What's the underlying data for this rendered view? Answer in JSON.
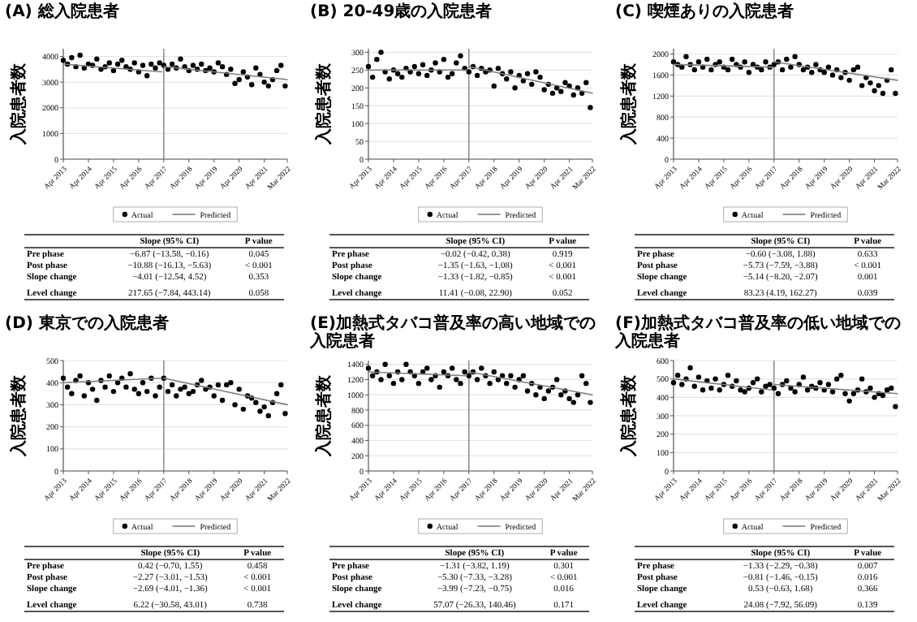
{
  "chart_data": [
    {
      "type": "scatter",
      "title": "(A) 総入院患者",
      "ylabel": "入院患者数",
      "grid": "y",
      "legend": "bottom",
      "x": [
        "2013-04",
        "2013-06",
        "2013-08",
        "2013-10",
        "2013-12",
        "2014-02",
        "2014-04",
        "2014-06",
        "2014-08",
        "2014-10",
        "2014-12",
        "2015-02",
        "2015-04",
        "2015-06",
        "2015-08",
        "2015-10",
        "2015-12",
        "2016-02",
        "2016-04",
        "2016-06",
        "2016-08",
        "2016-10",
        "2016-12",
        "2017-02",
        "2017-04",
        "2017-06",
        "2017-08",
        "2017-10",
        "2017-12",
        "2018-02",
        "2018-04",
        "2018-06",
        "2018-08",
        "2018-10",
        "2018-12",
        "2019-02",
        "2019-04",
        "2019-06",
        "2019-08",
        "2019-10",
        "2019-12",
        "2020-02",
        "2020-04",
        "2020-06",
        "2020-08",
        "2020-10",
        "2020-12",
        "2021-02",
        "2021-04",
        "2021-06",
        "2021-08",
        "2021-10",
        "2021-12",
        "2022-02"
      ],
      "xlim": [
        "2013-04",
        "2022-03"
      ],
      "xticks": [
        {
          "value": "2013-04",
          "label": "Apr 2013"
        },
        {
          "value": "2014-04",
          "label": "Apr 2014"
        },
        {
          "value": "2015-04",
          "label": "Apr 2015"
        },
        {
          "value": "2016-04",
          "label": "Apr 2016"
        },
        {
          "value": "2017-04",
          "label": "Apr 2017"
        },
        {
          "value": "2018-04",
          "label": "Apr 2018"
        },
        {
          "value": "2019-04",
          "label": "Apr 2019"
        },
        {
          "value": "2020-04",
          "label": "Apr 2020"
        },
        {
          "value": "2021-04",
          "label": "Apr 2021"
        },
        {
          "value": "2022-03",
          "label": "Mar 2022"
        }
      ],
      "ylim": [
        0,
        4300
      ],
      "yticks": [
        0,
        1000,
        2000,
        3000,
        4000
      ],
      "ref_lines": [
        {
          "axis": "x",
          "value": "2017-04",
          "color": "#808080"
        }
      ],
      "series": [
        {
          "name": "Actual",
          "type": "scatter",
          "marker": "circle",
          "color": "#000000",
          "values": [
            3850,
            3700,
            3950,
            3600,
            4050,
            3550,
            3700,
            3650,
            3900,
            3500,
            3600,
            3750,
            3450,
            3700,
            3850,
            3600,
            3500,
            3750,
            3400,
            3650,
            3250,
            3700,
            3550,
            3750,
            3650,
            3500,
            3700,
            3550,
            3900,
            3600,
            3450,
            3650,
            3500,
            3700,
            3450,
            3550,
            3400,
            3750,
            3600,
            3300,
            3500,
            2950,
            3100,
            3400,
            3200,
            2900,
            3550,
            3300,
            3000,
            2850,
            3100,
            3450,
            3650,
            2850
          ]
        },
        {
          "name": "Predicted",
          "type": "line",
          "marker": "none",
          "color": "#7f7f7f",
          "x": [
            "2013-04",
            "2017-03"
          ],
          "values": [
            3700,
            3400
          ]
        },
        {
          "type": "line",
          "marker": "none",
          "color": "#7f7f7f",
          "x": [
            "2017-04",
            "2022-03"
          ],
          "values": [
            3600,
            3100
          ]
        }
      ],
      "annotations": [
        "Slope (95% CI)",
        "P value",
        "Pre phase",
        "−6.87 (−13.58, −0.16)",
        "0.045",
        "Post phase",
        "−10.88 (−16.13, −5.63)",
        "< 0.001",
        "Slope change",
        "−4.01 (−12.54, 4.52)",
        "0.353",
        "Level change",
        "217.65 (−7.84, 443.14)",
        "0.058"
      ]
    },
    {
      "type": "scatter",
      "title": "(B) 20-49歳の入院患者",
      "ylabel": "入院患者数",
      "grid": "y",
      "legend": "bottom",
      "x": [
        "2013-04",
        "2013-06",
        "2013-08",
        "2013-10",
        "2013-12",
        "2014-02",
        "2014-04",
        "2014-06",
        "2014-08",
        "2014-10",
        "2014-12",
        "2015-02",
        "2015-04",
        "2015-06",
        "2015-08",
        "2015-10",
        "2015-12",
        "2016-02",
        "2016-04",
        "2016-06",
        "2016-08",
        "2016-10",
        "2016-12",
        "2017-02",
        "2017-04",
        "2017-06",
        "2017-08",
        "2017-10",
        "2017-12",
        "2018-02",
        "2018-04",
        "2018-06",
        "2018-08",
        "2018-10",
        "2018-12",
        "2019-02",
        "2019-04",
        "2019-06",
        "2019-08",
        "2019-10",
        "2019-12",
        "2020-02",
        "2020-04",
        "2020-06",
        "2020-08",
        "2020-10",
        "2020-12",
        "2021-02",
        "2021-04",
        "2021-06",
        "2021-08",
        "2021-10",
        "2021-12",
        "2022-02"
      ],
      "xlim": [
        "2013-04",
        "2022-03"
      ],
      "xticks": [
        {
          "value": "2013-04",
          "label": "Apr 2013"
        },
        {
          "value": "2014-04",
          "label": "Apr 2014"
        },
        {
          "value": "2015-04",
          "label": "Apr 2015"
        },
        {
          "value": "2016-04",
          "label": "Apr 2016"
        },
        {
          "value": "2017-04",
          "label": "Apr 2017"
        },
        {
          "value": "2018-04",
          "label": "Apr 2018"
        },
        {
          "value": "2019-04",
          "label": "Apr 2019"
        },
        {
          "value": "2020-04",
          "label": "Apr 2020"
        },
        {
          "value": "2021-04",
          "label": "Apr 2021"
        },
        {
          "value": "2022-03",
          "label": "Mar 2022"
        }
      ],
      "ylim": [
        0,
        310
      ],
      "yticks": [
        0,
        50,
        100,
        150,
        200,
        250,
        300
      ],
      "ref_lines": [
        {
          "axis": "x",
          "value": "2017-04",
          "color": "#808080"
        }
      ],
      "series": [
        {
          "name": "Actual",
          "type": "scatter",
          "marker": "circle",
          "color": "#000000",
          "values": [
            260,
            230,
            280,
            300,
            245,
            225,
            250,
            240,
            230,
            255,
            245,
            260,
            240,
            265,
            235,
            250,
            270,
            245,
            280,
            230,
            240,
            270,
            290,
            255,
            245,
            260,
            235,
            255,
            245,
            250,
            205,
            255,
            240,
            225,
            245,
            200,
            235,
            220,
            240,
            210,
            245,
            230,
            195,
            210,
            185,
            200,
            190,
            215,
            205,
            180,
            200,
            185,
            215,
            145
          ]
        },
        {
          "name": "Predicted",
          "type": "line",
          "marker": "none",
          "color": "#7f7f7f",
          "x": [
            "2013-04",
            "2017-03"
          ],
          "values": [
            250,
            250
          ]
        },
        {
          "type": "line",
          "marker": "none",
          "color": "#7f7f7f",
          "x": [
            "2017-04",
            "2022-03"
          ],
          "values": [
            260,
            185
          ]
        }
      ],
      "annotations": [
        "Slope (95% CI)",
        "P value",
        "Pre phase",
        "−0.02 (−0.42, 0.38)",
        "0.919",
        "Post phase",
        "−1.35 (−1.63, −1.08)",
        "< 0.001",
        "Slope change",
        "−1.33 (−1.82, −0.85)",
        "< 0.001",
        "Level change",
        "11.41 (−0.08, 22.90)",
        "0.052"
      ]
    },
    {
      "type": "scatter",
      "title": "(C) 喫煙ありの入院患者",
      "ylabel": "入院患者数",
      "grid": "y",
      "legend": "bottom",
      "x": [
        "2013-04",
        "2013-06",
        "2013-08",
        "2013-10",
        "2013-12",
        "2014-02",
        "2014-04",
        "2014-06",
        "2014-08",
        "2014-10",
        "2014-12",
        "2015-02",
        "2015-04",
        "2015-06",
        "2015-08",
        "2015-10",
        "2015-12",
        "2016-02",
        "2016-04",
        "2016-06",
        "2016-08",
        "2016-10",
        "2016-12",
        "2017-02",
        "2017-04",
        "2017-06",
        "2017-08",
        "2017-10",
        "2017-12",
        "2018-02",
        "2018-04",
        "2018-06",
        "2018-08",
        "2018-10",
        "2018-12",
        "2019-02",
        "2019-04",
        "2019-06",
        "2019-08",
        "2019-10",
        "2019-12",
        "2020-02",
        "2020-04",
        "2020-06",
        "2020-08",
        "2020-10",
        "2020-12",
        "2021-02",
        "2021-04",
        "2021-06",
        "2021-08",
        "2021-10",
        "2021-12",
        "2022-02"
      ],
      "xlim": [
        "2013-04",
        "2022-03"
      ],
      "xticks": [
        {
          "value": "2013-04",
          "label": "Apr 2013"
        },
        {
          "value": "2014-04",
          "label": "Apr 2014"
        },
        {
          "value": "2015-04",
          "label": "Apr 2015"
        },
        {
          "value": "2016-04",
          "label": "Apr 2016"
        },
        {
          "value": "2017-04",
          "label": "Apr 2017"
        },
        {
          "value": "2018-04",
          "label": "Apr 2018"
        },
        {
          "value": "2019-04",
          "label": "Apr 2019"
        },
        {
          "value": "2020-04",
          "label": "Apr 2020"
        },
        {
          "value": "2021-04",
          "label": "Apr 2021"
        },
        {
          "value": "2022-03",
          "label": "Mar 2022"
        }
      ],
      "ylim": [
        0,
        2100
      ],
      "yticks": [
        0,
        400,
        800,
        1200,
        1600,
        2000
      ],
      "ref_lines": [
        {
          "axis": "x",
          "value": "2017-04",
          "color": "#808080"
        }
      ],
      "series": [
        {
          "name": "Actual",
          "type": "scatter",
          "marker": "circle",
          "color": "#000000",
          "values": [
            1850,
            1800,
            1750,
            1950,
            1800,
            1700,
            1850,
            1750,
            1900,
            1700,
            1800,
            1850,
            1750,
            1700,
            1900,
            1800,
            1750,
            1850,
            1650,
            1800,
            1750,
            1700,
            1850,
            1750,
            1800,
            1850,
            1700,
            1900,
            1750,
            1950,
            1800,
            1700,
            1750,
            1650,
            1800,
            1700,
            1650,
            1750,
            1600,
            1700,
            1550,
            1650,
            1500,
            1700,
            1750,
            1400,
            1550,
            1450,
            1300,
            1400,
            1250,
            1500,
            1700,
            1250
          ]
        },
        {
          "name": "Predicted",
          "type": "line",
          "marker": "none",
          "color": "#7f7f7f",
          "x": [
            "2013-04",
            "2017-03"
          ],
          "values": [
            1800,
            1750
          ]
        },
        {
          "type": "line",
          "marker": "none",
          "color": "#7f7f7f",
          "x": [
            "2017-04",
            "2022-03"
          ],
          "values": [
            1850,
            1500
          ]
        }
      ],
      "annotations": [
        "Slope (95% CI)",
        "P value",
        "Pre phase",
        "−0.60 (−3.08, 1.88)",
        "0.633",
        "Post phase",
        "−5.73 (−7.59, −3.88)",
        "< 0.001",
        "Slope change",
        "−5.14 (−8.20, −2.07)",
        "0.001",
        "Level change",
        "83.23 (4.19, 162.27)",
        "0.039"
      ]
    },
    {
      "type": "scatter",
      "title": "(D) 東京での入院患者",
      "ylabel": "入院患者数",
      "grid": "y",
      "legend": "bottom",
      "x": [
        "2013-04",
        "2013-06",
        "2013-08",
        "2013-10",
        "2013-12",
        "2014-02",
        "2014-04",
        "2014-06",
        "2014-08",
        "2014-10",
        "2014-12",
        "2015-02",
        "2015-04",
        "2015-06",
        "2015-08",
        "2015-10",
        "2015-12",
        "2016-02",
        "2016-04",
        "2016-06",
        "2016-08",
        "2016-10",
        "2016-12",
        "2017-02",
        "2017-04",
        "2017-06",
        "2017-08",
        "2017-10",
        "2017-12",
        "2018-02",
        "2018-04",
        "2018-06",
        "2018-08",
        "2018-10",
        "2018-12",
        "2019-02",
        "2019-04",
        "2019-06",
        "2019-08",
        "2019-10",
        "2019-12",
        "2020-02",
        "2020-04",
        "2020-06",
        "2020-08",
        "2020-10",
        "2020-12",
        "2021-02",
        "2021-04",
        "2021-06",
        "2021-08",
        "2021-10",
        "2021-12",
        "2022-02"
      ],
      "xlim": [
        "2013-04",
        "2022-03"
      ],
      "xticks": [
        {
          "value": "2013-04",
          "label": "Apr 2013"
        },
        {
          "value": "2014-04",
          "label": "Apr 2014"
        },
        {
          "value": "2015-04",
          "label": "Apr 2015"
        },
        {
          "value": "2016-04",
          "label": "Apr 2016"
        },
        {
          "value": "2017-04",
          "label": "Apr 2017"
        },
        {
          "value": "2018-04",
          "label": "Apr 2018"
        },
        {
          "value": "2019-04",
          "label": "Apr 2019"
        },
        {
          "value": "2020-04",
          "label": "Apr 2020"
        },
        {
          "value": "2021-04",
          "label": "Apr 2021"
        },
        {
          "value": "2022-03",
          "label": "Mar 2022"
        }
      ],
      "ylim": [
        0,
        500
      ],
      "yticks": [
        0,
        100,
        200,
        300,
        400,
        500
      ],
      "ref_lines": [
        {
          "axis": "x",
          "value": "2017-04",
          "color": "#808080"
        }
      ],
      "series": [
        {
          "name": "Actual",
          "type": "scatter",
          "marker": "circle",
          "color": "#000000",
          "values": [
            420,
            380,
            350,
            410,
            430,
            340,
            400,
            370,
            320,
            410,
            380,
            430,
            360,
            400,
            420,
            380,
            440,
            370,
            350,
            400,
            360,
            420,
            340,
            380,
            420,
            360,
            390,
            340,
            370,
            380,
            350,
            360,
            390,
            410,
            370,
            380,
            340,
            390,
            320,
            390,
            400,
            300,
            370,
            280,
            340,
            330,
            310,
            270,
            290,
            250,
            310,
            350,
            390,
            260
          ]
        },
        {
          "name": "Predicted",
          "type": "line",
          "marker": "none",
          "color": "#7f7f7f",
          "x": [
            "2013-04",
            "2017-03"
          ],
          "values": [
            400,
            420
          ]
        },
        {
          "type": "line",
          "marker": "none",
          "color": "#7f7f7f",
          "x": [
            "2017-04",
            "2022-03"
          ],
          "values": [
            420,
            300
          ]
        }
      ],
      "annotations": [
        "Slope (95% CI)",
        "P value",
        "Pre phase",
        "0.42 (−0.70, 1.55)",
        "0.458",
        "Post phase",
        "−2.27 (−3.01, −1.53)",
        "< 0.001",
        "Slope change",
        "−2.69 (−4.01, −1.36)",
        "< 0.001",
        "Level change",
        "6.22 (−30.58, 43.01)",
        "0.738"
      ]
    },
    {
      "type": "scatter",
      "title": "(E)加熱式タバコ普及率の高い地域での入院患者",
      "ylabel": "入院患者数",
      "grid": "y",
      "legend": "bottom",
      "x": [
        "2013-04",
        "2013-06",
        "2013-08",
        "2013-10",
        "2013-12",
        "2014-02",
        "2014-04",
        "2014-06",
        "2014-08",
        "2014-10",
        "2014-12",
        "2015-02",
        "2015-04",
        "2015-06",
        "2015-08",
        "2015-10",
        "2015-12",
        "2016-02",
        "2016-04",
        "2016-06",
        "2016-08",
        "2016-10",
        "2016-12",
        "2017-02",
        "2017-04",
        "2017-06",
        "2017-08",
        "2017-10",
        "2017-12",
        "2018-02",
        "2018-04",
        "2018-06",
        "2018-08",
        "2018-10",
        "2018-12",
        "2019-02",
        "2019-04",
        "2019-06",
        "2019-08",
        "2019-10",
        "2019-12",
        "2020-02",
        "2020-04",
        "2020-06",
        "2020-08",
        "2020-10",
        "2020-12",
        "2021-02",
        "2021-04",
        "2021-06",
        "2021-08",
        "2021-10",
        "2021-12",
        "2022-02"
      ],
      "xlim": [
        "2013-04",
        "2022-03"
      ],
      "xticks": [
        {
          "value": "2013-04",
          "label": "Apr 2013"
        },
        {
          "value": "2014-04",
          "label": "Apr 2014"
        },
        {
          "value": "2015-04",
          "label": "Apr 2015"
        },
        {
          "value": "2016-04",
          "label": "Apr 2016"
        },
        {
          "value": "2017-04",
          "label": "Apr 2017"
        },
        {
          "value": "2018-04",
          "label": "Apr 2018"
        },
        {
          "value": "2019-04",
          "label": "Apr 2019"
        },
        {
          "value": "2020-04",
          "label": "Apr 2020"
        },
        {
          "value": "2021-04",
          "label": "Apr 2021"
        },
        {
          "value": "2022-03",
          "label": "Mar 2022"
        }
      ],
      "ylim": [
        0,
        1450
      ],
      "yticks": [
        0,
        200,
        400,
        600,
        800,
        1000,
        1200,
        1400
      ],
      "ref_lines": [
        {
          "axis": "x",
          "value": "2017-04",
          "color": "#808080"
        }
      ],
      "series": [
        {
          "name": "Actual",
          "type": "scatter",
          "marker": "circle",
          "color": "#000000",
          "values": [
            1350,
            1250,
            1300,
            1200,
            1400,
            1250,
            1150,
            1300,
            1200,
            1400,
            1300,
            1250,
            1150,
            1300,
            1350,
            1200,
            1250,
            1100,
            1300,
            1250,
            1350,
            1200,
            1150,
            1300,
            1250,
            1300,
            1200,
            1350,
            1250,
            1150,
            1300,
            1200,
            1250,
            1150,
            1250,
            1100,
            1200,
            1250,
            1050,
            1150,
            1000,
            1100,
            950,
            1050,
            1100,
            1200,
            1000,
            1050,
            950,
            900,
            1000,
            1250,
            1150,
            900
          ]
        },
        {
          "name": "Predicted",
          "type": "line",
          "marker": "none",
          "color": "#7f7f7f",
          "x": [
            "2013-04",
            "2017-03"
          ],
          "values": [
            1300,
            1250
          ]
        },
        {
          "type": "line",
          "marker": "none",
          "color": "#7f7f7f",
          "x": [
            "2017-04",
            "2022-03"
          ],
          "values": [
            1300,
            1000
          ]
        }
      ],
      "annotations": [
        "Slope (95% CI)",
        "P value",
        "Pre phase",
        "−1.31 (−3.82, 1.19)",
        "0.301",
        "Post phase",
        "−5.30 (−7.33, −3.28)",
        "< 0.001",
        "Slope change",
        "−3.99 (−7.23, −0.75)",
        "0.016",
        "Level change",
        "57.07 (−26.33, 140.46)",
        "0.171"
      ]
    },
    {
      "type": "scatter",
      "title": "(F)加熱式タバコ普及率の低い地域での入院患者",
      "ylabel": "入院患者数",
      "grid": "y",
      "legend": "bottom",
      "x": [
        "2013-04",
        "2013-06",
        "2013-08",
        "2013-10",
        "2013-12",
        "2014-02",
        "2014-04",
        "2014-06",
        "2014-08",
        "2014-10",
        "2014-12",
        "2015-02",
        "2015-04",
        "2015-06",
        "2015-08",
        "2015-10",
        "2015-12",
        "2016-02",
        "2016-04",
        "2016-06",
        "2016-08",
        "2016-10",
        "2016-12",
        "2017-02",
        "2017-04",
        "2017-06",
        "2017-08",
        "2017-10",
        "2017-12",
        "2018-02",
        "2018-04",
        "2018-06",
        "2018-08",
        "2018-10",
        "2018-12",
        "2019-02",
        "2019-04",
        "2019-06",
        "2019-08",
        "2019-10",
        "2019-12",
        "2020-02",
        "2020-04",
        "2020-06",
        "2020-08",
        "2020-10",
        "2020-12",
        "2021-02",
        "2021-04",
        "2021-06",
        "2021-08",
        "2021-10",
        "2021-12",
        "2022-02"
      ],
      "xlim": [
        "2013-04",
        "2022-03"
      ],
      "xticks": [
        {
          "value": "2013-04",
          "label": "Apr 2013"
        },
        {
          "value": "2014-04",
          "label": "Apr 2014"
        },
        {
          "value": "2015-04",
          "label": "Apr 2015"
        },
        {
          "value": "2016-04",
          "label": "Apr 2016"
        },
        {
          "value": "2017-04",
          "label": "Apr 2017"
        },
        {
          "value": "2018-04",
          "label": "Apr 2018"
        },
        {
          "value": "2019-04",
          "label": "Apr 2019"
        },
        {
          "value": "2020-04",
          "label": "Apr 2020"
        },
        {
          "value": "2021-04",
          "label": "Apr 2021"
        },
        {
          "value": "2022-03",
          "label": "Mar 2022"
        }
      ],
      "ylim": [
        0,
        600
      ],
      "yticks": [
        0,
        100,
        200,
        300,
        400,
        500,
        600
      ],
      "ref_lines": [
        {
          "axis": "x",
          "value": "2017-04",
          "color": "#808080"
        }
      ],
      "series": [
        {
          "name": "Actual",
          "type": "scatter",
          "marker": "circle",
          "color": "#000000",
          "values": [
            480,
            520,
            470,
            500,
            560,
            460,
            510,
            440,
            490,
            450,
            500,
            440,
            470,
            520,
            460,
            490,
            440,
            430,
            450,
            480,
            500,
            430,
            460,
            470,
            450,
            420,
            470,
            490,
            450,
            430,
            470,
            510,
            440,
            460,
            450,
            480,
            440,
            470,
            430,
            500,
            520,
            420,
            380,
            420,
            440,
            500,
            430,
            450,
            400,
            420,
            410,
            440,
            450,
            350
          ]
        },
        {
          "name": "Predicted",
          "type": "line",
          "marker": "none",
          "color": "#7f7f7f",
          "x": [
            "2013-04",
            "2017-03"
          ],
          "values": [
            500,
            440
          ]
        },
        {
          "type": "line",
          "marker": "none",
          "color": "#7f7f7f",
          "x": [
            "2017-04",
            "2022-03"
          ],
          "values": [
            470,
            420
          ]
        }
      ],
      "annotations": [
        "Slope (95% CI)",
        "P value",
        "Pre phase",
        "−1.33 (−2.29, −0.38)",
        "0.007",
        "Post phase",
        "−0.81 (−1.46, −0.15)",
        "0.016",
        "Slope change",
        "0.53 (−0.63, 1.68)",
        "0.366",
        "Level change",
        "24.08 (−7.92, 56.09)",
        "0.139"
      ]
    }
  ]
}
